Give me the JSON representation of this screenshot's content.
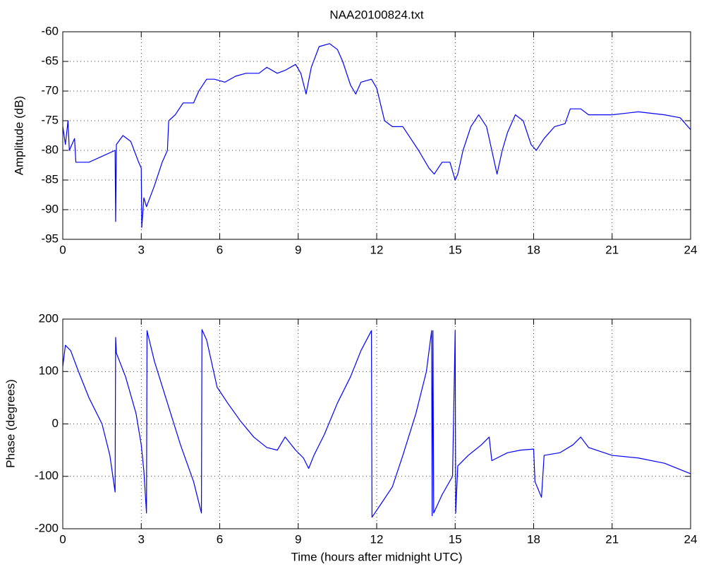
{
  "chart_data": [
    {
      "type": "line",
      "title": "NAA20100824.txt",
      "ylabel": "Amplitude (dB)",
      "color": "#0000ff",
      "grid": true,
      "xlim": [
        0,
        24
      ],
      "xticks": [
        0,
        3,
        6,
        9,
        12,
        15,
        18,
        21,
        24
      ],
      "ylim": [
        -95,
        -60
      ],
      "yticks": [
        -95,
        -90,
        -85,
        -80,
        -75,
        -70,
        -65,
        -60
      ],
      "x": [
        0,
        0.1,
        0.2,
        0.25,
        0.45,
        0.5,
        0.6,
        1.0,
        1.5,
        2.0,
        2.02,
        2.05,
        2.3,
        2.6,
        2.9,
        3.0,
        3.02,
        3.1,
        3.2,
        3.5,
        3.8,
        4.0,
        4.05,
        4.3,
        4.6,
        5.0,
        5.2,
        5.5,
        5.8,
        6.2,
        6.6,
        7.0,
        7.5,
        7.8,
        8.2,
        8.5,
        8.9,
        9.1,
        9.3,
        9.5,
        9.8,
        10.2,
        10.5,
        10.7,
        11.0,
        11.2,
        11.4,
        11.8,
        12.0,
        12.3,
        12.6,
        13.0,
        13.3,
        13.6,
        14.0,
        14.2,
        14.5,
        14.8,
        15.0,
        15.1,
        15.3,
        15.6,
        15.9,
        16.2,
        16.5,
        16.6,
        16.8,
        17.0,
        17.3,
        17.6,
        17.9,
        18.1,
        18.4,
        18.8,
        19.2,
        19.4,
        19.8,
        20.1,
        21.0,
        22.0,
        23.0,
        23.6,
        24.0
      ],
      "values": [
        -76,
        -79,
        -75,
        -80,
        -78,
        -82,
        -82,
        -82,
        -81,
        -80,
        -92,
        -79,
        -77.5,
        -78.5,
        -82,
        -83,
        -93,
        -88,
        -89.5,
        -86,
        -82,
        -80,
        -75,
        -74,
        -72,
        -72,
        -70,
        -68,
        -68,
        -68.5,
        -67.5,
        -67,
        -67,
        -66,
        -67,
        -66.5,
        -65.5,
        -67,
        -70.5,
        -66,
        -62.5,
        -62,
        -63,
        -65,
        -69,
        -70.5,
        -68.5,
        -68,
        -69.5,
        -75,
        -76,
        -76,
        -78,
        -80,
        -83,
        -84,
        -82,
        -82,
        -85,
        -84,
        -80,
        -76,
        -74,
        -76,
        -82,
        -84,
        -80,
        -77,
        -74,
        -75,
        -79,
        -80,
        -78,
        -76,
        -75.5,
        -73,
        -73,
        -74,
        -74,
        -73.5,
        -74,
        -74.5,
        -76.5
      ]
    },
    {
      "type": "line",
      "xlabel": "Time (hours after midnight UTC)",
      "ylabel": "Phase (degrees)",
      "color": "#0000ff",
      "grid": true,
      "xlim": [
        0,
        24
      ],
      "xticks": [
        0,
        3,
        6,
        9,
        12,
        15,
        18,
        21,
        24
      ],
      "ylim": [
        -200,
        200
      ],
      "yticks": [
        -200,
        -100,
        0,
        100,
        200
      ],
      "x": [
        0,
        0.1,
        0.3,
        0.6,
        1.0,
        1.5,
        1.8,
        2.0,
        2.02,
        2.05,
        2.4,
        2.8,
        3.0,
        3.1,
        3.2,
        3.22,
        3.5,
        4.0,
        4.5,
        5.0,
        5.3,
        5.32,
        5.5,
        5.9,
        6.3,
        6.8,
        7.3,
        7.8,
        8.2,
        8.5,
        8.9,
        9.2,
        9.4,
        9.6,
        10.0,
        10.5,
        11.0,
        11.4,
        11.8,
        11.82,
        12.2,
        12.6,
        13.0,
        13.5,
        13.9,
        14.1,
        14.12,
        14.15,
        14.18,
        14.5,
        14.9,
        15.0,
        15.02,
        15.1,
        15.5,
        16.0,
        16.3,
        16.4,
        16.6,
        17.0,
        17.5,
        18.0,
        18.05,
        18.3,
        18.4,
        19.0,
        19.5,
        19.8,
        20.1,
        21.0,
        22.0,
        23.0,
        24.0
      ],
      "values": [
        110,
        150,
        140,
        100,
        50,
        0,
        -60,
        -130,
        165,
        135,
        90,
        20,
        -40,
        -90,
        -170,
        178,
        120,
        40,
        -40,
        -110,
        -170,
        180,
        160,
        70,
        40,
        5,
        -25,
        -45,
        -50,
        -25,
        -50,
        -65,
        -85,
        -60,
        -20,
        40,
        90,
        140,
        178,
        -178,
        -150,
        -120,
        -60,
        20,
        100,
        178,
        -175,
        178,
        -170,
        -135,
        -100,
        178,
        -170,
        -80,
        -60,
        -40,
        -25,
        -70,
        -65,
        -55,
        -50,
        -48,
        -110,
        -140,
        -60,
        -55,
        -40,
        -25,
        -45,
        -60,
        -65,
        -75,
        -95
      ]
    }
  ]
}
